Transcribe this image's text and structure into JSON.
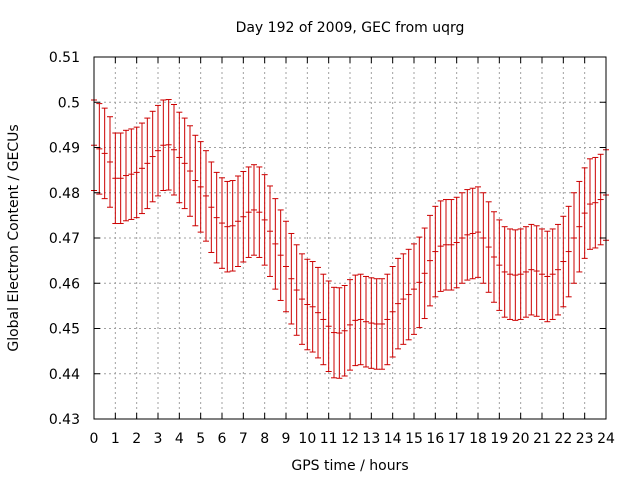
{
  "chart_data": {
    "type": "line",
    "title": "Day 192 of 2009, GEC from uqrg",
    "xlabel": "GPS time / hours",
    "ylabel": "Global Electron Content / GECUs",
    "xlim": [
      0,
      24
    ],
    "ylim": [
      0.43,
      0.51
    ],
    "grid": true,
    "x_ticks": [
      "0",
      "1",
      "2",
      "3",
      "4",
      "5",
      "6",
      "7",
      "8",
      "9",
      "10",
      "11",
      "12",
      "13",
      "14",
      "15",
      "16",
      "17",
      "18",
      "19",
      "20",
      "21",
      "22",
      "23",
      "24"
    ],
    "y_ticks": [
      "0.43",
      "0.44",
      "0.45",
      "0.46",
      "0.47",
      "0.48",
      "0.49",
      "0.5",
      "0.51"
    ],
    "error_bar_half_width": 0.01,
    "line_color": "#cc0000",
    "x": [
      0,
      0.25,
      0.5,
      0.75,
      1,
      1.25,
      1.5,
      1.75,
      2,
      2.25,
      2.5,
      2.75,
      3,
      3.25,
      3.5,
      3.75,
      4,
      4.25,
      4.5,
      4.75,
      5,
      5.25,
      5.5,
      5.75,
      6,
      6.25,
      6.5,
      6.75,
      7,
      7.25,
      7.5,
      7.75,
      8,
      8.25,
      8.5,
      8.75,
      9,
      9.25,
      9.5,
      9.75,
      10,
      10.25,
      10.5,
      10.75,
      11,
      11.25,
      11.5,
      11.75,
      12,
      12.25,
      12.5,
      12.75,
      13,
      13.25,
      13.5,
      13.75,
      14,
      14.25,
      14.5,
      14.75,
      15,
      15.25,
      15.5,
      15.75,
      16,
      16.25,
      16.5,
      16.75,
      17,
      17.25,
      17.5,
      17.75,
      18,
      18.25,
      18.5,
      18.75,
      19,
      19.25,
      19.5,
      19.75,
      20,
      20.25,
      20.5,
      20.75,
      21,
      21.25,
      21.5,
      21.75,
      22,
      22.25,
      22.5,
      22.75,
      23,
      23.25,
      23.5,
      23.75,
      24
    ],
    "y": [
      0.4905,
      0.4897,
      0.4887,
      0.4868,
      0.4832,
      0.4832,
      0.4838,
      0.4841,
      0.4845,
      0.4854,
      0.4865,
      0.488,
      0.4893,
      0.4905,
      0.4906,
      0.4895,
      0.4878,
      0.4865,
      0.4848,
      0.4827,
      0.4813,
      0.4793,
      0.4768,
      0.4745,
      0.4733,
      0.4725,
      0.4727,
      0.4737,
      0.4747,
      0.4757,
      0.4762,
      0.4757,
      0.474,
      0.4715,
      0.4687,
      0.4662,
      0.4637,
      0.461,
      0.4585,
      0.4565,
      0.4553,
      0.4548,
      0.4535,
      0.452,
      0.4505,
      0.4491,
      0.449,
      0.4495,
      0.4508,
      0.4518,
      0.452,
      0.4515,
      0.4512,
      0.451,
      0.451,
      0.452,
      0.4537,
      0.4555,
      0.4565,
      0.4575,
      0.4587,
      0.4602,
      0.4622,
      0.465,
      0.467,
      0.4682,
      0.4685,
      0.4685,
      0.469,
      0.47,
      0.4707,
      0.471,
      0.4713,
      0.47,
      0.468,
      0.4658,
      0.464,
      0.4625,
      0.462,
      0.4618,
      0.462,
      0.4625,
      0.463,
      0.4627,
      0.462,
      0.4615,
      0.462,
      0.463,
      0.4648,
      0.467,
      0.47,
      0.4725,
      0.4755,
      0.4775,
      0.4778,
      0.4785,
      0.4795
    ]
  }
}
